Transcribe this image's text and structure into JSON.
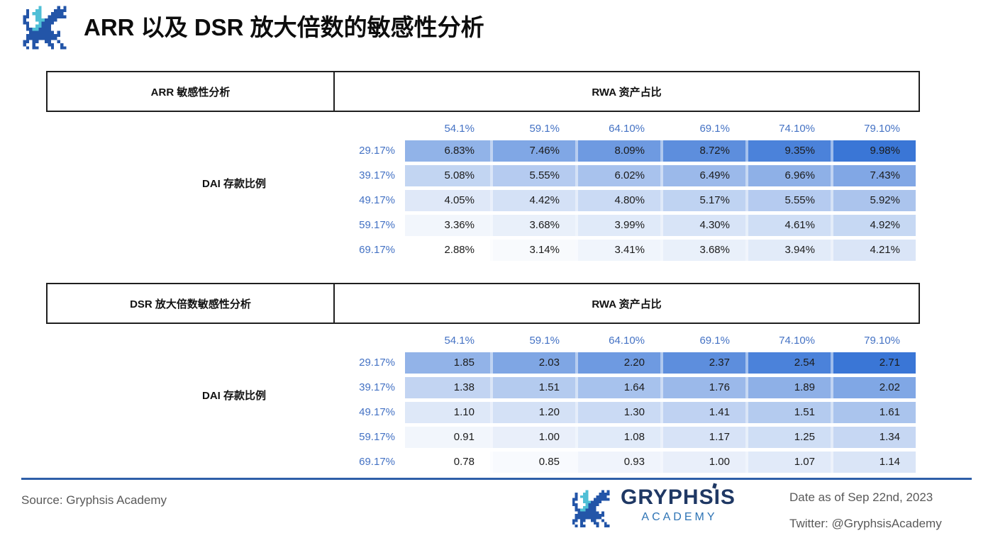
{
  "title": "ARR 以及 DSR 放大倍数的敏感性分析",
  "colors": {
    "heat_min": "#ffffff",
    "heat_max": "#3a76d6",
    "label_blue": "#4472c4",
    "rule_blue": "#2e5fa8",
    "brand_navy": "#1f3864",
    "brand_blue": "#2e74b5",
    "logo_navy": "#2355a8",
    "logo_cyan": "#4fbfd6"
  },
  "icons": {
    "brand_logo": "gryphsis-dragon-icon"
  },
  "tables": [
    {
      "left_header": "ARR 敏感性分析",
      "top_header": "RWA 资产占比",
      "row_axis_label": "DAI 存款比例",
      "col_headers": [
        "54.1%",
        "59.1%",
        "64.10%",
        "69.1%",
        "74.10%",
        "79.10%"
      ],
      "rows": [
        {
          "label": "29.17%",
          "values": [
            "6.83%",
            "7.46%",
            "8.09%",
            "8.72%",
            "9.35%",
            "9.98%"
          ]
        },
        {
          "label": "39.17%",
          "values": [
            "5.08%",
            "5.55%",
            "6.02%",
            "6.49%",
            "6.96%",
            "7.43%"
          ]
        },
        {
          "label": "49.17%",
          "values": [
            "4.05%",
            "4.42%",
            "4.80%",
            "5.17%",
            "5.55%",
            "5.92%"
          ]
        },
        {
          "label": "59.17%",
          "values": [
            "3.36%",
            "3.68%",
            "3.99%",
            "4.30%",
            "4.61%",
            "4.92%"
          ]
        },
        {
          "label": "69.17%",
          "values": [
            "2.88%",
            "3.14%",
            "3.41%",
            "3.68%",
            "3.94%",
            "4.21%"
          ]
        }
      ]
    },
    {
      "left_header": "DSR 放大倍数敏感性分析",
      "top_header": "RWA 资产占比",
      "row_axis_label": "DAI 存款比例",
      "col_headers": [
        "54.1%",
        "59.1%",
        "64.10%",
        "69.1%",
        "74.10%",
        "79.10%"
      ],
      "rows": [
        {
          "label": "29.17%",
          "values": [
            "1.85",
            "2.03",
            "2.20",
            "2.37",
            "2.54",
            "2.71"
          ]
        },
        {
          "label": "39.17%",
          "values": [
            "1.38",
            "1.51",
            "1.64",
            "1.76",
            "1.89",
            "2.02"
          ]
        },
        {
          "label": "49.17%",
          "values": [
            "1.10",
            "1.20",
            "1.30",
            "1.41",
            "1.51",
            "1.61"
          ]
        },
        {
          "label": "59.17%",
          "values": [
            "0.91",
            "1.00",
            "1.08",
            "1.17",
            "1.25",
            "1.34"
          ]
        },
        {
          "label": "69.17%",
          "values": [
            "0.78",
            "0.85",
            "0.93",
            "1.00",
            "1.07",
            "1.14"
          ]
        }
      ]
    }
  ],
  "footer": {
    "source": "Source: Gryphsis Academy",
    "brand_name": "GRYPHSIS",
    "brand_sub": "ACADEMY",
    "date": "Date as of Sep 22nd, 2023",
    "twitter": "Twitter: @GryphsisAcademy"
  },
  "chart_data": [
    {
      "type": "heatmap",
      "title": "ARR 敏感性分析",
      "x_label": "RWA 资产占比",
      "y_label": "DAI 存款比例",
      "x": [
        54.1,
        59.1,
        64.1,
        69.1,
        74.1,
        79.1
      ],
      "y": [
        29.17,
        39.17,
        49.17,
        59.17,
        69.17
      ],
      "values_unit": "%",
      "color_scale": [
        "#ffffff",
        "#3a76d6"
      ],
      "matrix": [
        [
          6.83,
          7.46,
          8.09,
          8.72,
          9.35,
          9.98
        ],
        [
          5.08,
          5.55,
          6.02,
          6.49,
          6.96,
          7.43
        ],
        [
          4.05,
          4.42,
          4.8,
          5.17,
          5.55,
          5.92
        ],
        [
          3.36,
          3.68,
          3.99,
          4.3,
          4.61,
          4.92
        ],
        [
          2.88,
          3.14,
          3.41,
          3.68,
          3.94,
          4.21
        ]
      ]
    },
    {
      "type": "heatmap",
      "title": "DSR 放大倍数敏感性分析",
      "x_label": "RWA 资产占比",
      "y_label": "DAI 存款比例",
      "x": [
        54.1,
        59.1,
        64.1,
        69.1,
        74.1,
        79.1
      ],
      "y": [
        29.17,
        39.17,
        49.17,
        59.17,
        69.17
      ],
      "values_unit": "multiplier",
      "color_scale": [
        "#ffffff",
        "#3a76d6"
      ],
      "matrix": [
        [
          1.85,
          2.03,
          2.2,
          2.37,
          2.54,
          2.71
        ],
        [
          1.38,
          1.51,
          1.64,
          1.76,
          1.89,
          2.02
        ],
        [
          1.1,
          1.2,
          1.3,
          1.41,
          1.51,
          1.61
        ],
        [
          0.91,
          1.0,
          1.08,
          1.17,
          1.25,
          1.34
        ],
        [
          0.78,
          0.85,
          0.93,
          1.0,
          1.07,
          1.14
        ]
      ]
    }
  ]
}
